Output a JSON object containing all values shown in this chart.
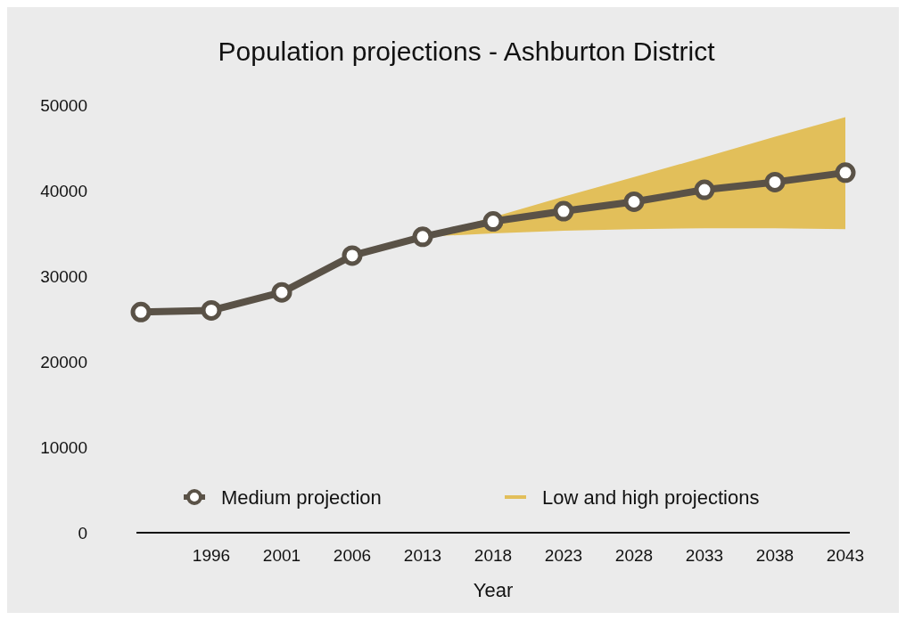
{
  "chart_data": {
    "type": "line",
    "title": "Population projections - Ashburton District",
    "xlabel": "Year",
    "categories": [
      null,
      "1996",
      "2001",
      "2006",
      "2013",
      "2018",
      "2023",
      "2028",
      "2033",
      "2038",
      "2043"
    ],
    "series": [
      {
        "name": "Low and high projections",
        "type": "area",
        "color": "#e2bf5a",
        "values": [
          null,
          null,
          null,
          null,
          null,
          null,
          null,
          null,
          null,
          null,
          null
        ],
        "lower": [
          null,
          null,
          null,
          null,
          34600,
          35000,
          35300,
          35500,
          35600,
          35600,
          35500
        ],
        "upper": [
          null,
          null,
          null,
          null,
          34600,
          36900,
          39300,
          41600,
          43900,
          46300,
          48600
        ]
      },
      {
        "name": "Medium projection",
        "color": "#5a5247",
        "marker": "circle",
        "values": [
          25800,
          26000,
          28100,
          32400,
          34600,
          36400,
          37600,
          38700,
          40100,
          41000,
          42100
        ]
      }
    ],
    "ylim": [
      0,
      50000
    ],
    "yticks": [
      0,
      10000,
      20000,
      30000,
      40000,
      50000
    ],
    "grid": false,
    "legend": "bottom"
  }
}
